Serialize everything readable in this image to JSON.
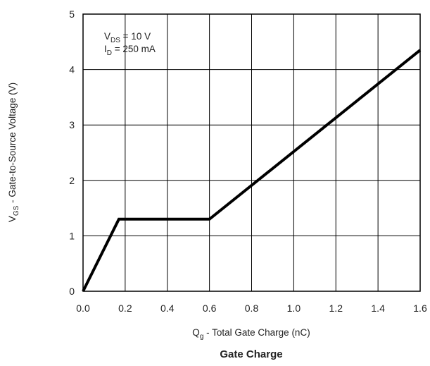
{
  "chart_data": {
    "type": "line",
    "title": "Gate Charge",
    "xlabel": {
      "main": "Q",
      "sub": "g",
      "rest": " - Total Gate Charge (nC)"
    },
    "ylabel": {
      "main": "V",
      "sub": "GS",
      "rest": " - Gate-to-Source Voltage (V)"
    },
    "xlim": [
      0,
      1.6
    ],
    "ylim": [
      0,
      5
    ],
    "x_ticks": [
      0.0,
      0.2,
      0.4,
      0.6,
      0.8,
      1.0,
      1.2,
      1.4,
      1.6
    ],
    "x_tick_labels": [
      "0.0",
      "0.2",
      "0.4",
      "0.6",
      "0.8",
      "1.0",
      "1.2",
      "1.4",
      "1.6"
    ],
    "y_ticks": [
      0,
      1,
      2,
      3,
      4,
      5
    ],
    "y_tick_labels": [
      "0",
      "1",
      "2",
      "3",
      "4",
      "5"
    ],
    "x_gridlines": [
      0.2,
      0.4,
      0.6,
      0.8,
      1.0,
      1.2,
      1.4
    ],
    "y_gridlines": [
      1,
      2,
      3,
      4
    ],
    "grid": true,
    "series": [
      {
        "x": [
          0.0,
          0.17,
          0.6,
          1.6
        ],
        "y": [
          0.0,
          1.3,
          1.3,
          4.35
        ]
      }
    ],
    "annotation": {
      "line1": {
        "main": "V",
        "sub": "DS",
        "rest": " = 10 V"
      },
      "line2": {
        "main": "I",
        "sub": "D",
        "rest": " = 250 mA"
      }
    },
    "line_color": "#000000",
    "grid_color": "#000000"
  }
}
